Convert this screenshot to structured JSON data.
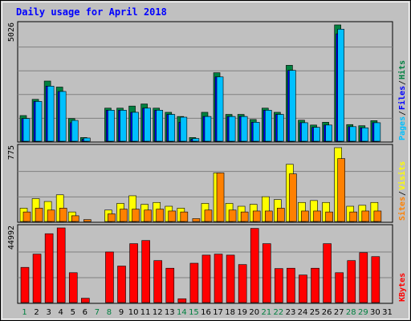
{
  "title": "Daily usage for April 2018",
  "colors": {
    "bg": "#c0c0c0",
    "title": "#0000ff",
    "hits": "#008040",
    "files": "#0000ff",
    "pages": "#00c0ff",
    "visits": "#ffff00",
    "sites": "#ff8000",
    "kbytes": "#ff0000",
    "weekend_label": "#008040",
    "weekday_label": "#000000"
  },
  "chart_data": [
    {
      "type": "bar",
      "panel": "hits-files-pages",
      "y_max_label": "5026",
      "ylim": [
        0,
        5026
      ],
      "legend": [
        "Pages",
        "Files",
        "Hits"
      ],
      "x": [
        1,
        2,
        3,
        4,
        5,
        6,
        7,
        8,
        9,
        10,
        11,
        12,
        13,
        14,
        15,
        16,
        17,
        18,
        19,
        20,
        21,
        22,
        23,
        24,
        25,
        26,
        27,
        28,
        29,
        30,
        31
      ],
      "series": [
        {
          "name": "Hits",
          "values": [
            1110,
            1810,
            2600,
            2340,
            980,
            160,
            0,
            1430,
            1430,
            1520,
            1610,
            1430,
            1250,
            1070,
            160,
            1250,
            2960,
            1160,
            1160,
            940,
            1430,
            1250,
            3280,
            910,
            700,
            820,
            5026,
            720,
            670,
            890,
            0
          ]
        },
        {
          "name": "Files",
          "values": [
            980,
            1720,
            2380,
            2150,
            800,
            90,
            0,
            1340,
            1340,
            1250,
            1430,
            1340,
            1160,
            820,
            90,
            1070,
            2780,
            1070,
            1070,
            820,
            1340,
            1160,
            3060,
            800,
            600,
            700,
            4640,
            630,
            580,
            800,
            0
          ]
        },
        {
          "name": "Pages",
          "values": [
            980,
            1720,
            2380,
            2150,
            900,
            140,
            0,
            1340,
            1340,
            1250,
            1430,
            1340,
            1160,
            1040,
            120,
            1070,
            2780,
            1070,
            1070,
            820,
            1340,
            1160,
            3060,
            800,
            600,
            700,
            4840,
            630,
            580,
            800,
            0
          ]
        }
      ]
    },
    {
      "type": "bar",
      "panel": "visits-sites",
      "y_max_label": "775",
      "ylim": [
        0,
        775
      ],
      "legend": [
        "Sites",
        "Visits"
      ],
      "x": [
        1,
        2,
        3,
        4,
        5,
        6,
        7,
        8,
        9,
        10,
        11,
        12,
        13,
        14,
        15,
        16,
        17,
        18,
        19,
        20,
        21,
        22,
        23,
        24,
        25,
        26,
        27,
        28,
        29,
        30,
        31
      ],
      "series": [
        {
          "name": "Visits",
          "values": [
            140,
            240,
            210,
            280,
            100,
            0,
            0,
            120,
            190,
            270,
            180,
            200,
            160,
            140,
            0,
            190,
            510,
            190,
            160,
            180,
            260,
            230,
            600,
            200,
            220,
            200,
            775,
            160,
            170,
            200,
            0
          ],
          "hidden_zeros": [
            6,
            7,
            15,
            31
          ]
        },
        {
          "name": "Sites",
          "values": [
            100,
            140,
            120,
            140,
            60,
            20,
            0,
            80,
            130,
            130,
            120,
            130,
            110,
            100,
            30,
            120,
            510,
            120,
            100,
            110,
            110,
            140,
            500,
            110,
            110,
            100,
            660,
            100,
            110,
            110,
            0
          ]
        }
      ]
    },
    {
      "type": "bar",
      "panel": "kbytes",
      "y_max_label": "44992",
      "ylim": [
        0,
        44992
      ],
      "legend": [
        "KBytes"
      ],
      "x": [
        1,
        2,
        3,
        4,
        5,
        6,
        7,
        8,
        9,
        10,
        11,
        12,
        13,
        14,
        15,
        16,
        17,
        18,
        19,
        20,
        21,
        22,
        23,
        24,
        25,
        26,
        27,
        28,
        29,
        30,
        31
      ],
      "series": [
        {
          "name": "KBytes",
          "values": [
            21200,
            29200,
            41500,
            45000,
            18000,
            2600,
            0,
            30500,
            22000,
            35500,
            37400,
            25300,
            20700,
            2300,
            23700,
            28600,
            29200,
            28600,
            22900,
            44700,
            35500,
            20500,
            20700,
            16600,
            20700,
            35500,
            18000,
            25300,
            30100,
            27700,
            0
          ]
        }
      ]
    }
  ],
  "x_labels": [
    "1",
    "2",
    "3",
    "4",
    "5",
    "6",
    "7",
    "8",
    "9",
    "10",
    "11",
    "12",
    "13",
    "14",
    "15",
    "16",
    "17",
    "18",
    "19",
    "20",
    "21",
    "22",
    "23",
    "24",
    "25",
    "26",
    "27",
    "28",
    "29",
    "30",
    "31"
  ],
  "weekend_days": [
    1,
    7,
    8,
    14,
    15,
    21,
    22,
    28,
    29
  ]
}
